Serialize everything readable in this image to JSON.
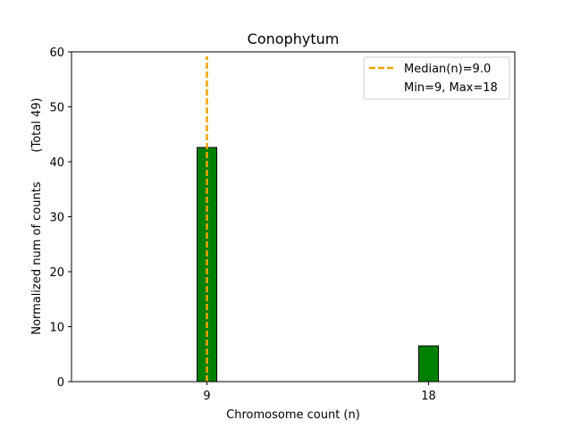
{
  "chart_data": {
    "type": "bar",
    "title": "Conophytum",
    "xlabel": "Chromosome count (n)",
    "ylabel": "Normalized num of counts",
    "ylabel_extra": "(Total 49)",
    "xlim": [
      3.5,
      21.5
    ],
    "ylim": [
      0,
      60
    ],
    "xticks": [
      9,
      18
    ],
    "yticks": [
      0,
      10,
      20,
      30,
      40,
      50,
      60
    ],
    "bar_width": 0.8,
    "categories": [
      9,
      18
    ],
    "values": [
      42.6,
      6.5
    ],
    "bar_color": "#008000",
    "bar_edge_color": "#000000",
    "median": {
      "value": 9.0,
      "label": "Median(n)=9.0",
      "color": "#f0a30a"
    },
    "legend_placement": "top-right",
    "legend_entries": [
      "Median(n)=9.0",
      "Min=9, Max=18"
    ],
    "grid": false
  }
}
